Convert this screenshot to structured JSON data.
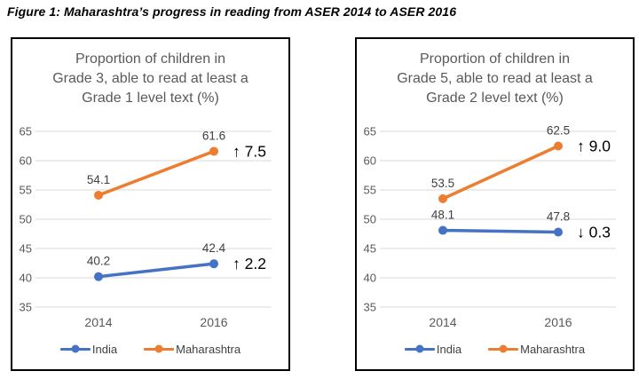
{
  "figure_title": "Figure 1: Maharashtra’s progress in reading from ASER 2014 to ASER 2016",
  "colors": {
    "india": "#4472C4",
    "maharashtra": "#ED7D31",
    "grid": "#D9D9D9",
    "axis_text": "#595959",
    "title_text": "#595959",
    "label_text": "#3F3F3F",
    "annotation_text": "#000000",
    "border": "#000000"
  },
  "chart_data": [
    {
      "type": "line",
      "title": "Proportion of children in Grade 3, able to read at least a Grade 1 level text (%)",
      "title_lines": [
        "Proportion of children in",
        "Grade 3, able to read at least a",
        "Grade 1 level text (%)"
      ],
      "categories": [
        "2014",
        "2016"
      ],
      "series": [
        {
          "name": "India",
          "color_key": "india",
          "values": [
            40.2,
            42.4
          ],
          "labels": [
            "40.2",
            "42.4"
          ],
          "annotation": "↑ 2.2"
        },
        {
          "name": "Maharashtra",
          "color_key": "maharashtra",
          "values": [
            54.1,
            61.6
          ],
          "labels": [
            "54.1",
            "61.6"
          ],
          "annotation": "↑ 7.5"
        }
      ],
      "ylim": [
        35,
        65
      ],
      "ytick_step": 5,
      "grid": true,
      "legend_position": "bottom"
    },
    {
      "type": "line",
      "title": "Proportion of children in Grade 5, able to read at least a Grade 2 level text (%)",
      "title_lines": [
        "Proportion of children in",
        "Grade 5, able to read at least a",
        "Grade 2 level text (%)"
      ],
      "categories": [
        "2014",
        "2016"
      ],
      "series": [
        {
          "name": "India",
          "color_key": "india",
          "values": [
            48.1,
            47.8
          ],
          "labels": [
            "48.1",
            "47.8"
          ],
          "annotation": "↓ 0.3"
        },
        {
          "name": "Maharashtra",
          "color_key": "maharashtra",
          "values": [
            53.5,
            62.5
          ],
          "labels": [
            "53.5",
            "62.5"
          ],
          "annotation": "↑ 9.0"
        }
      ],
      "ylim": [
        35,
        65
      ],
      "ytick_step": 5,
      "grid": true,
      "legend_position": "bottom"
    }
  ]
}
